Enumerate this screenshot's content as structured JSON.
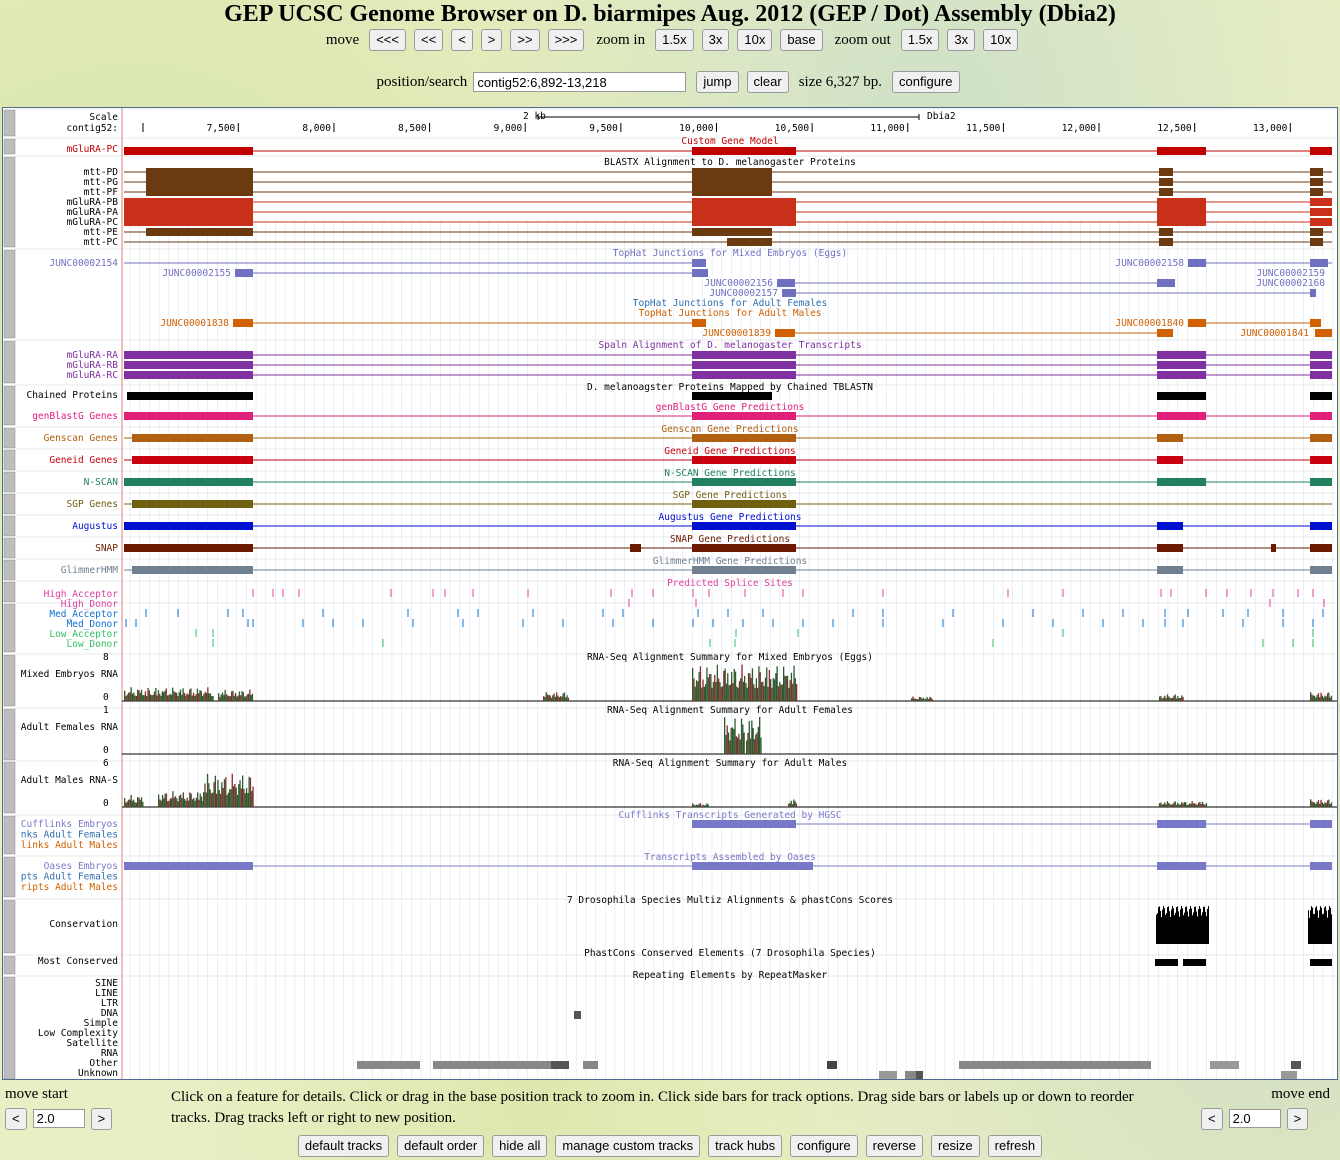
{
  "title": "GEP UCSC Genome Browser on D. biarmipes Aug. 2012 (GEP / Dot) Assembly (Dbia2)",
  "nav": {
    "move_label": "move",
    "move_buttons": [
      "<<<",
      "<<",
      "<",
      ">",
      ">>",
      ">>>"
    ],
    "zoom_in_label": "zoom in",
    "zoom_in_buttons": [
      "1.5x",
      "3x",
      "10x",
      "base"
    ],
    "zoom_out_label": "zoom out",
    "zoom_out_buttons": [
      "1.5x",
      "3x",
      "10x"
    ]
  },
  "position": {
    "label": "position/search",
    "value": "contig52:6,892-13,218",
    "jump": "jump",
    "clear": "clear",
    "size_text": "size 6,327 bp.",
    "configure": "configure"
  },
  "ruler": {
    "scale_label": "Scale",
    "contig_label": "contig52:",
    "scale_bar": "2 kb",
    "assembly": "Dbia2",
    "ticks": [
      "7,500",
      "8,000",
      "8,500",
      "9,000",
      "9,500",
      "10,000",
      "10,500",
      "11,000",
      "11,500",
      "12,000",
      "12,500",
      "13,000"
    ]
  },
  "track_titles": {
    "custom": "Custom Gene Model",
    "blastx": "BLASTX Alignment to D. melanogaster Proteins",
    "tophat_eggs": "TopHat Junctions for Mixed Embryos (Eggs)",
    "tophat_females": "TopHat Junctions for Adult Females",
    "tophat_males": "TopHat Junctions for Adult Males",
    "spaln": "Spaln Alignment of D. melanogaster Transcripts",
    "chained": "D. melanoagster Proteins Mapped by Chained TBLASTN",
    "genblast": "genBlastG Gene Predictions",
    "genscan": "Genscan Gene Predictions",
    "geneid": "Geneid Gene Predictions",
    "nscan": "N-SCAN Gene Predictions",
    "sgp": "SGP Gene Predictions",
    "augustus": "Augustus Gene Predictions",
    "snap": "SNAP Gene Predictions",
    "glimmer": "GlimmerHMM Gene Predictions",
    "splice": "Predicted Splice Sites",
    "rna_eggs": "RNA-Seq Alignment Summary for Mixed Embryos (Eggs)",
    "rna_females": "RNA-Seq Alignment Summary for Adult Females",
    "rna_males": "RNA-Seq Alignment Summary for Adult Males",
    "cufflinks": "Cufflinks Transcripts Generated by HGSC",
    "oases": "Transcripts Assembled by Oases",
    "multiz": "7 Drosophila Species Multiz Alignments & phastCons Scores",
    "phastcons": "PhastCons Conserved Elements (7 Drosophila Species)",
    "repeat": "Repeating Elements by RepeatMasker"
  },
  "labels": {
    "custom": "mGluRA-PC",
    "blastx": [
      "mtt-PD",
      "mtt-PG",
      "mtt-PF",
      "mGluRA-PB",
      "mGluRA-PA",
      "mGluRA-PC",
      "mtt-PE",
      "mtt-PC"
    ],
    "spaln": [
      "mGluRA-RA",
      "mGluRA-RB",
      "mGluRA-RC"
    ],
    "chained": "Chained Proteins",
    "genblast": "genBlastG Genes",
    "genscan": "Genscan Genes",
    "geneid": "Geneid Genes",
    "nscan": "N-SCAN",
    "sgp": "SGP Genes",
    "augustus": "Augustus",
    "snap": "SNAP",
    "glimmer": "GlimmerHMM",
    "splice": [
      "High_Acceptor",
      "High_Donor",
      "Med_Acceptor",
      "Med_Donor",
      "Low_Acceptor",
      "Low_Donor"
    ],
    "rna_eggs": "Mixed Embryos RNA",
    "rna_eggs_max": "8",
    "rna_females": "Adult Females RNA",
    "rna_females_max": "1",
    "rna_males": "Adult Males RNA-S",
    "rna_males_max": "6",
    "rna_zero": "0",
    "cufflinks": [
      "Cufflinks Embryos",
      "nks Adult Females",
      "links Adult Males"
    ],
    "oases": [
      "Oases Embryos",
      "pts Adult Females",
      "ripts Adult Males"
    ],
    "conservation": "Conservation",
    "most_conserved": "Most Conserved",
    "repeat": [
      "SINE",
      "LINE",
      "LTR",
      "DNA",
      "Simple",
      "Low Complexity",
      "Satellite",
      "RNA",
      "Other",
      "Unknown"
    ]
  },
  "junctions": {
    "eggs": [
      "JUNC00002154",
      "JUNC00002155",
      "JUNC00002158",
      "JUNC00002159",
      "JUNC00002156",
      "JUNC00002160",
      "JUNC00002157"
    ],
    "males": [
      "JUNC00001838",
      "JUNC00001840",
      "JUNC00001839",
      "JUNC00001841"
    ]
  },
  "bottom": {
    "move_start": "move start",
    "move_end": "move end",
    "left_btn": "<",
    "right_btn": ">",
    "move_start_value": "2.0",
    "move_end_value": "2.0",
    "help": "Click on a feature for details. Click or drag in the base position track to zoom in. Click side bars for track options. Drag side bars or labels up or down to reorder tracks. Drag tracks left or right to new position.",
    "buttons": [
      "default tracks",
      "default order",
      "hide all",
      "manage custom tracks",
      "track hubs",
      "configure",
      "reverse",
      "resize",
      "refresh"
    ]
  },
  "colors": {
    "custom": "#c00000",
    "blastx_brown": "#6b3a10",
    "blastx_red": "#c8301a",
    "junction": "#7070c0",
    "junction_female": "#3070b0",
    "junction_male": "#d06000",
    "spaln": "#8030a0",
    "chained": "#000000",
    "genblast": "#e0207a",
    "genscan": "#b06010",
    "geneid": "#c80010",
    "nscan": "#208060",
    "sgp": "#706010",
    "augustus": "#0010d0",
    "snap": "#6a1a00",
    "glimmer": "#708090",
    "cufflinks": "#7878c8",
    "oases": "#7878c8",
    "high_acceptor": "#e040a0",
    "med": "#1070d0",
    "low": "#30c060"
  }
}
